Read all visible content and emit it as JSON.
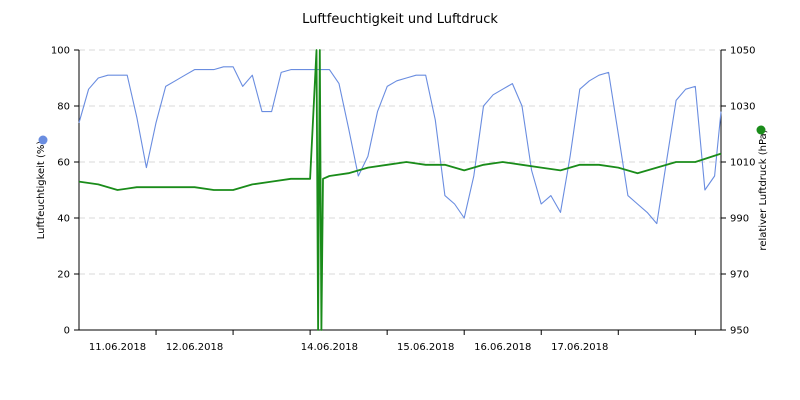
{
  "chart_data": {
    "type": "line",
    "title": "Luftfeuchtigkeit und Luftdruck",
    "x_axis": {
      "type": "date",
      "start": "2018-06-10T12:00",
      "end": "2018-06-18T20:00",
      "tick_labels": [
        "11.06.2018",
        "12.06.2018",
        "14.06.2018",
        "15.06.2018",
        "16.06.2018",
        "17.06.2018"
      ],
      "label_positions": [
        "2018-06-11T00:00",
        "2018-06-12T00:00",
        "2018-06-13T18:00",
        "2018-06-15T00:00",
        "2018-06-16T00:00",
        "2018-06-17T00:00"
      ],
      "tick_marks": [
        "2018-06-11T12:00",
        "2018-06-12T12:00",
        "2018-06-13T12:00",
        "2018-06-14T12:00",
        "2018-06-15T12:00",
        "2018-06-16T12:00",
        "2018-06-17T12:00",
        "2018-06-18T12:00"
      ]
    },
    "y_axis_left": {
      "label": "Luftfeuchtigkeit (%)",
      "range": [
        0,
        100
      ],
      "ticks": [
        0,
        20,
        40,
        60,
        80,
        100
      ],
      "color": "#6a8de0"
    },
    "y_axis_right": {
      "label": "relativer Luftdruck (hPa)",
      "range": [
        950,
        1050
      ],
      "ticks": [
        950,
        970,
        990,
        1010,
        1030,
        1050
      ],
      "color": "#1a8c1a"
    },
    "grid": true,
    "series": [
      {
        "axis": "left",
        "color": "#6a8de0",
        "x": [
          "2018-06-10T12:00",
          "2018-06-10T15:00",
          "2018-06-10T18:00",
          "2018-06-10T21:00",
          "2018-06-11T00:00",
          "2018-06-11T03:00",
          "2018-06-11T06:00",
          "2018-06-11T09:00",
          "2018-06-11T12:00",
          "2018-06-11T15:00",
          "2018-06-11T18:00",
          "2018-06-11T21:00",
          "2018-06-12T00:00",
          "2018-06-12T03:00",
          "2018-06-12T06:00",
          "2018-06-12T09:00",
          "2018-06-12T12:00",
          "2018-06-12T15:00",
          "2018-06-12T18:00",
          "2018-06-12T21:00",
          "2018-06-13T00:00",
          "2018-06-13T03:00",
          "2018-06-13T06:00",
          "2018-06-13T09:00",
          "2018-06-13T12:00",
          "2018-06-13T15:00",
          "2018-06-13T18:00",
          "2018-06-13T21:00",
          "2018-06-14T00:00",
          "2018-06-14T03:00",
          "2018-06-14T06:00",
          "2018-06-14T09:00",
          "2018-06-14T12:00",
          "2018-06-14T15:00",
          "2018-06-14T18:00",
          "2018-06-14T21:00",
          "2018-06-15T00:00",
          "2018-06-15T03:00",
          "2018-06-15T06:00",
          "2018-06-15T09:00",
          "2018-06-15T12:00",
          "2018-06-15T15:00",
          "2018-06-15T18:00",
          "2018-06-15T21:00",
          "2018-06-16T00:00",
          "2018-06-16T03:00",
          "2018-06-16T06:00",
          "2018-06-16T09:00",
          "2018-06-16T12:00",
          "2018-06-16T15:00",
          "2018-06-16T18:00",
          "2018-06-16T21:00",
          "2018-06-17T00:00",
          "2018-06-17T03:00",
          "2018-06-17T06:00",
          "2018-06-17T09:00",
          "2018-06-17T12:00",
          "2018-06-17T15:00",
          "2018-06-17T18:00",
          "2018-06-17T21:00",
          "2018-06-18T00:00",
          "2018-06-18T03:00",
          "2018-06-18T06:00",
          "2018-06-18T09:00",
          "2018-06-18T12:00",
          "2018-06-18T15:00",
          "2018-06-18T18:00",
          "2018-06-18T20:00"
        ],
        "values": [
          74,
          86,
          90,
          91,
          91,
          91,
          76,
          58,
          74,
          87,
          89,
          91,
          93,
          93,
          93,
          94,
          94,
          87,
          91,
          78,
          78,
          92,
          93,
          93,
          93,
          93,
          93,
          88,
          72,
          55,
          62,
          78,
          87,
          89,
          90,
          91,
          91,
          75,
          48,
          45,
          40,
          55,
          80,
          84,
          86,
          88,
          80,
          57,
          45,
          48,
          42,
          62,
          86,
          89,
          91,
          92,
          70,
          48,
          45,
          42,
          38,
          60,
          82,
          86,
          87,
          50,
          55,
          78
        ]
      },
      {
        "axis": "right",
        "color": "#1a8c1a",
        "x": [
          "2018-06-10T12:00",
          "2018-06-10T18:00",
          "2018-06-11T00:00",
          "2018-06-11T06:00",
          "2018-06-11T12:00",
          "2018-06-11T18:00",
          "2018-06-12T00:00",
          "2018-06-12T06:00",
          "2018-06-12T12:00",
          "2018-06-12T18:00",
          "2018-06-13T00:00",
          "2018-06-13T06:00",
          "2018-06-13T12:00",
          "2018-06-13T14:00",
          "2018-06-13T14:30",
          "2018-06-13T15:00",
          "2018-06-13T15:30",
          "2018-06-13T16:00",
          "2018-06-13T18:00",
          "2018-06-14T00:00",
          "2018-06-14T06:00",
          "2018-06-14T12:00",
          "2018-06-14T18:00",
          "2018-06-15T00:00",
          "2018-06-15T06:00",
          "2018-06-15T12:00",
          "2018-06-15T18:00",
          "2018-06-16T00:00",
          "2018-06-16T06:00",
          "2018-06-16T12:00",
          "2018-06-16T18:00",
          "2018-06-17T00:00",
          "2018-06-17T06:00",
          "2018-06-17T12:00",
          "2018-06-17T18:00",
          "2018-06-18T00:00",
          "2018-06-18T06:00",
          "2018-06-18T12:00",
          "2018-06-18T20:00"
        ],
        "values": [
          1003,
          1002,
          1000,
          1001,
          1001,
          1001,
          1001,
          1000,
          1000,
          1002,
          1003,
          1004,
          1004,
          1050,
          950,
          1050,
          950,
          1004,
          1005,
          1006,
          1008,
          1009,
          1010,
          1009,
          1009,
          1007,
          1009,
          1010,
          1009,
          1008,
          1007,
          1009,
          1009,
          1008,
          1006,
          1008,
          1010,
          1010,
          1013
        ]
      }
    ]
  }
}
